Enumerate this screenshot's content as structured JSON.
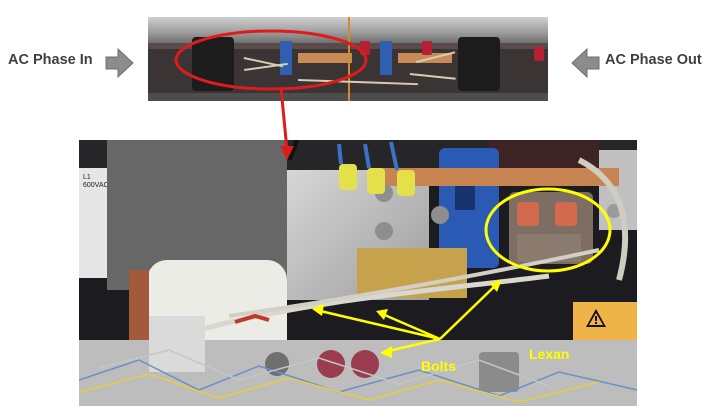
{
  "labels": {
    "ac_phase_in": "AC Phase In",
    "ac_phase_out": "AC Phase Out",
    "bolts": "Bolts",
    "lexan": "Lexan"
  },
  "colors": {
    "highlight_red": "#e01b1b",
    "highlight_yellow": "#ffff00",
    "arrow_gray": "#8c8c8c",
    "label_gray": "#404040"
  },
  "icons": {
    "phase_in_arrow": "arrow-right",
    "phase_out_arrow": "arrow-left"
  }
}
